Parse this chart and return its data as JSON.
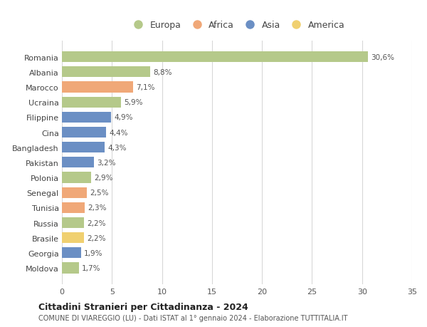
{
  "countries": [
    "Romania",
    "Albania",
    "Marocco",
    "Ucraina",
    "Filippine",
    "Cina",
    "Bangladesh",
    "Pakistan",
    "Polonia",
    "Senegal",
    "Tunisia",
    "Russia",
    "Brasile",
    "Georgia",
    "Moldova"
  ],
  "values": [
    30.6,
    8.8,
    7.1,
    5.9,
    4.9,
    4.4,
    4.3,
    3.2,
    2.9,
    2.5,
    2.3,
    2.2,
    2.2,
    1.9,
    1.7
  ],
  "labels": [
    "30,6%",
    "8,8%",
    "7,1%",
    "5,9%",
    "4,9%",
    "4,4%",
    "4,3%",
    "3,2%",
    "2,9%",
    "2,5%",
    "2,3%",
    "2,2%",
    "2,2%",
    "1,9%",
    "1,7%"
  ],
  "continents": [
    "Europa",
    "Europa",
    "Africa",
    "Europa",
    "Asia",
    "Asia",
    "Asia",
    "Asia",
    "Europa",
    "Africa",
    "Africa",
    "Europa",
    "America",
    "Asia",
    "Europa"
  ],
  "colors": {
    "Europa": "#b5c98a",
    "Africa": "#f0a878",
    "Asia": "#6b8fc4",
    "America": "#f0d070"
  },
  "legend_order": [
    "Europa",
    "Africa",
    "Asia",
    "America"
  ],
  "title1": "Cittadini Stranieri per Cittadinanza - 2024",
  "title2": "COMUNE DI VIAREGGIO (LU) - Dati ISTAT al 1° gennaio 2024 - Elaborazione TUTTITALIA.IT",
  "xlim": [
    0,
    35
  ],
  "xticks": [
    0,
    5,
    10,
    15,
    20,
    25,
    30,
    35
  ],
  "background_color": "#ffffff",
  "grid_color": "#d8d8d8"
}
